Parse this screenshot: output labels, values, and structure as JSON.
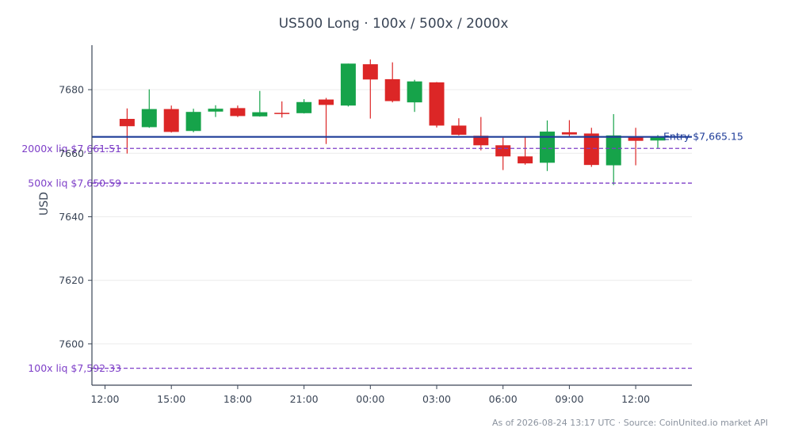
{
  "chart_data": {
    "type": "candlestick",
    "title": "US500 Long · 100x / 500x / 2000x",
    "ylabel": "USD",
    "xlabel": "",
    "ylim": [
      7587,
      7694
    ],
    "grid": true,
    "x_ticks": [
      "12:00",
      "15:00",
      "18:00",
      "21:00",
      "00:00",
      "03:00",
      "06:00",
      "09:00",
      "12:00"
    ],
    "y_ticks": [
      7600,
      7620,
      7640,
      7660,
      7680
    ],
    "entry": {
      "label": "Entry $7,665.15",
      "value": 7665.15,
      "color": "#1f3d99"
    },
    "liquidations": [
      {
        "label": "2000x liq $7,661.51",
        "value": 7661.51
      },
      {
        "label": "500x liq $7,650.59",
        "value": 7650.59
      },
      {
        "label": "100x liq $7,592.33",
        "value": 7592.33
      }
    ],
    "colors": {
      "up": "#16a34a",
      "down": "#dc2626",
      "liq": "#7e3fc8",
      "axis": "#3a4556",
      "grid": "#ececec"
    },
    "candles": [
      {
        "t": "13:00",
        "o": 7670.8,
        "h": 7674.1,
        "l": 7659.9,
        "c": 7668.5
      },
      {
        "t": "14:00",
        "o": 7668.2,
        "h": 7680.1,
        "l": 7668.0,
        "c": 7673.9
      },
      {
        "t": "15:00",
        "o": 7673.9,
        "h": 7675.0,
        "l": 7666.5,
        "c": 7666.7
      },
      {
        "t": "16:00",
        "o": 7667.0,
        "h": 7674.0,
        "l": 7666.6,
        "c": 7673.0
      },
      {
        "t": "17:00",
        "o": 7673.1,
        "h": 7675.1,
        "l": 7671.4,
        "c": 7674.0
      },
      {
        "t": "18:00",
        "o": 7674.2,
        "h": 7675.0,
        "l": 7671.4,
        "c": 7671.7
      },
      {
        "t": "19:00",
        "o": 7671.6,
        "h": 7679.6,
        "l": 7671.5,
        "c": 7672.9
      },
      {
        "t": "20:00",
        "o": 7672.7,
        "h": 7676.3,
        "l": 7671.2,
        "c": 7672.5
      },
      {
        "t": "21:00",
        "o": 7672.6,
        "h": 7677.0,
        "l": 7672.5,
        "c": 7676.1
      },
      {
        "t": "22:00",
        "o": 7676.9,
        "h": 7677.4,
        "l": 7662.9,
        "c": 7675.2
      },
      {
        "t": "23:00",
        "o": 7675.0,
        "h": 7688.2,
        "l": 7674.7,
        "c": 7688.2
      },
      {
        "t": "00:00",
        "o": 7688.0,
        "h": 7689.5,
        "l": 7670.9,
        "c": 7683.2
      },
      {
        "t": "01:00",
        "o": 7683.3,
        "h": 7688.6,
        "l": 7676.0,
        "c": 7676.4
      },
      {
        "t": "02:00",
        "o": 7676.0,
        "h": 7683.1,
        "l": 7673.0,
        "c": 7682.6
      },
      {
        "t": "03:00",
        "o": 7682.3,
        "h": 7682.4,
        "l": 7668.1,
        "c": 7668.7
      },
      {
        "t": "04:00",
        "o": 7668.7,
        "h": 7671.0,
        "l": 7665.6,
        "c": 7665.8
      },
      {
        "t": "05:00",
        "o": 7665.5,
        "h": 7671.4,
        "l": 7660.9,
        "c": 7662.5
      },
      {
        "t": "06:00",
        "o": 7662.5,
        "h": 7664.9,
        "l": 7654.7,
        "c": 7659.0
      },
      {
        "t": "07:00",
        "o": 7659.0,
        "h": 7665.1,
        "l": 7656.4,
        "c": 7656.8
      },
      {
        "t": "08:00",
        "o": 7657.0,
        "h": 7670.3,
        "l": 7654.4,
        "c": 7666.8
      },
      {
        "t": "09:00",
        "o": 7666.6,
        "h": 7670.4,
        "l": 7665.4,
        "c": 7665.9
      },
      {
        "t": "10:00",
        "o": 7666.2,
        "h": 7668.0,
        "l": 7655.7,
        "c": 7656.3
      },
      {
        "t": "11:00",
        "o": 7656.2,
        "h": 7672.3,
        "l": 7650.0,
        "c": 7665.6
      },
      {
        "t": "12:00",
        "o": 7665.1,
        "h": 7668.0,
        "l": 7656.2,
        "c": 7663.9
      },
      {
        "t": "13:00",
        "o": 7664.0,
        "h": 7665.7,
        "l": 7661.6,
        "c": 7665.2
      }
    ]
  },
  "footer": "As of 2026-08-24 13:17 UTC · Source: CoinUnited.io market API"
}
